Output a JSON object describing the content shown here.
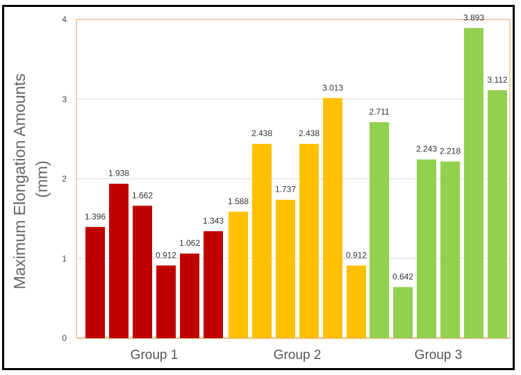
{
  "chart_data": {
    "type": "bar",
    "title": "",
    "ylabel_line1": "Maximum Elongation Amounts",
    "ylabel_line2": "(mm)",
    "xlabel": "",
    "ylim": [
      0,
      4
    ],
    "yticks": [
      0,
      1,
      2,
      3,
      4
    ],
    "grid": true,
    "groups": [
      {
        "label": "Group 1",
        "color": "#C00000",
        "values": [
          1.396,
          1.938,
          1.662,
          0.912,
          1.062,
          1.343
        ]
      },
      {
        "label": "Group 2",
        "color": "#FFC000",
        "values": [
          1.588,
          2.438,
          1.737,
          2.438,
          3.013,
          0.912
        ]
      },
      {
        "label": "Group 3",
        "color": "#92D050",
        "values": [
          2.711,
          0.642,
          2.243,
          2.218,
          3.893,
          3.112
        ]
      }
    ]
  }
}
